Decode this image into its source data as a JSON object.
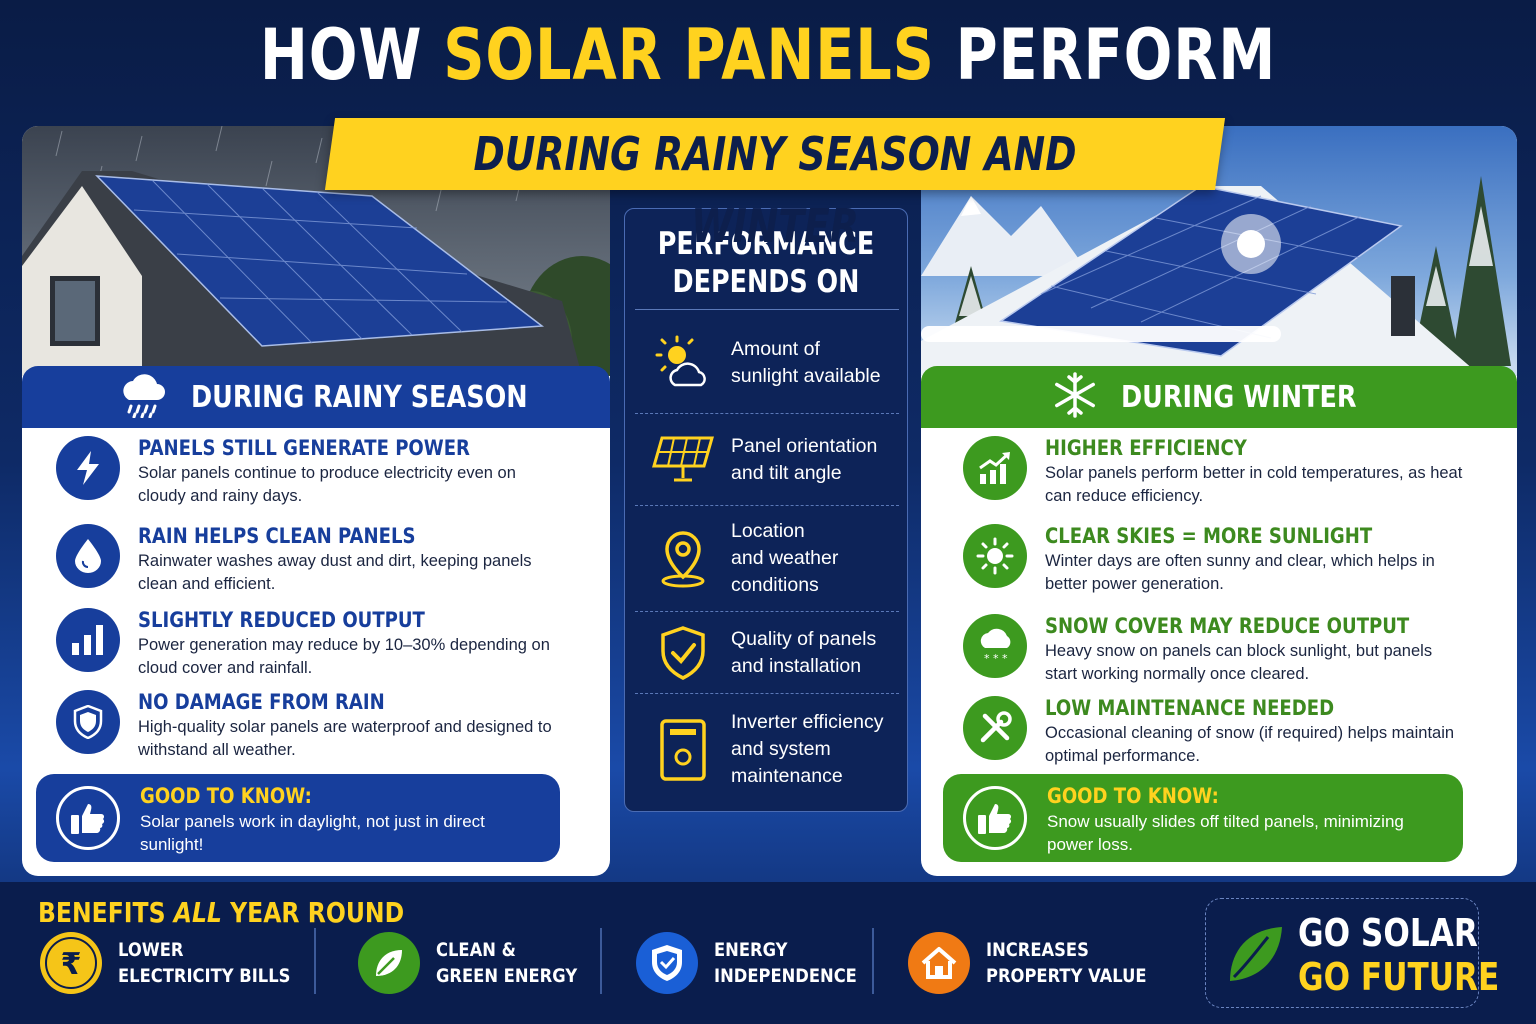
{
  "header": {
    "title_part1": "HOW ",
    "title_highlight": "SOLAR PANELS",
    "title_part2": " PERFORM",
    "subtitle": "DURING RAINY SEASON AND WINTER"
  },
  "rainy": {
    "section_title": "DURING RAINY SEASON",
    "items": [
      {
        "icon": "lightning-icon",
        "title": "PANELS STILL GENERATE POWER",
        "desc": "Solar panels continue to produce electricity even on cloudy and rainy days."
      },
      {
        "icon": "water-drop-icon",
        "title": "RAIN HELPS CLEAN PANELS",
        "desc": "Rainwater washes away dust and dirt, keeping panels clean and efficient."
      },
      {
        "icon": "bar-chart-icon",
        "title": "SLIGHTLY REDUCED OUTPUT",
        "desc": "Power generation may reduce by 10–30% depending on cloud cover and rainfall."
      },
      {
        "icon": "shield-icon",
        "title": "NO DAMAGE FROM RAIN",
        "desc": "High-quality solar panels are waterproof and designed to withstand all weather."
      }
    ],
    "good_title": "GOOD TO KNOW:",
    "good_text": "Solar panels work in daylight, not just in direct sunlight!"
  },
  "winter": {
    "section_title": "DURING WINTER",
    "items": [
      {
        "icon": "growth-chart-icon",
        "title": "HIGHER EFFICIENCY",
        "desc": "Solar panels perform better in cold temperatures, as heat can reduce efficiency."
      },
      {
        "icon": "sun-icon",
        "title": "CLEAR SKIES = MORE SUNLIGHT",
        "desc": "Winter days are often sunny and clear, which helps in better power generation."
      },
      {
        "icon": "snow-cloud-icon",
        "title": "SNOW COVER MAY REDUCE OUTPUT",
        "desc": "Heavy snow on panels can block sunlight, but panels start working normally once cleared."
      },
      {
        "icon": "wrench-icon",
        "title": "LOW MAINTENANCE NEEDED",
        "desc": "Occasional cleaning of snow (if required) helps maintain optimal performance."
      }
    ],
    "good_title": "GOOD TO KNOW:",
    "good_text": "Snow usually slides off tilted panels, minimizing power loss."
  },
  "middle": {
    "title_line1": "PERFORMANCE",
    "title_line2": "DEPENDS ON",
    "factors": [
      {
        "icon": "sun-cloud-icon",
        "text_l1": "Amount of",
        "text_l2": "sunlight available",
        "text_l3": ""
      },
      {
        "icon": "solar-panel-icon",
        "text_l1": "Panel orientation",
        "text_l2": "and tilt angle",
        "text_l3": ""
      },
      {
        "icon": "location-pin-icon",
        "text_l1": "Location",
        "text_l2": "and weather",
        "text_l3": "conditions"
      },
      {
        "icon": "shield-check-icon",
        "text_l1": "Quality of panels",
        "text_l2": "and installation",
        "text_l3": ""
      },
      {
        "icon": "inverter-icon",
        "text_l1": "Inverter efficiency",
        "text_l2": "and system",
        "text_l3": "maintenance"
      }
    ]
  },
  "footer": {
    "title_part1": "BENEFITS ",
    "title_part2": "ALL",
    "title_part3": " YEAR ROUND",
    "benefits": [
      {
        "icon": "rupee-icon",
        "label": "LOWER\nELECTRICITY BILLS",
        "color": "#f5c518"
      },
      {
        "icon": "leaf-icon",
        "label": "CLEAN &\nGREEN ENERGY",
        "color": "#3d9a1f"
      },
      {
        "icon": "shield-bolt-icon",
        "label": "ENERGY\nINDEPENDENCE",
        "color": "#1a5fd6"
      },
      {
        "icon": "house-icon",
        "label": "INCREASES\nPROPERTY VALUE",
        "color": "#f07a14"
      }
    ],
    "cta_line1": "GO SOLAR",
    "cta_line2": "GO FUTURE"
  },
  "colors": {
    "accent_yellow": "#ffd21f",
    "rain_blue": "#173e9c",
    "winter_green": "#3d9a1f",
    "navy": "#0d2358"
  }
}
